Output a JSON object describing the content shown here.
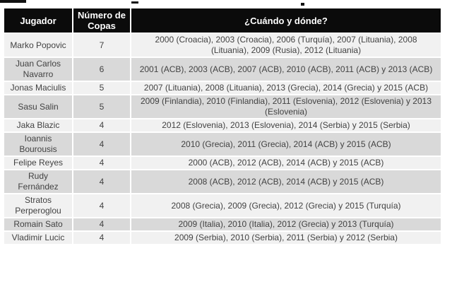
{
  "colors": {
    "header_bg": "#0b0b0b",
    "header_text": "#ffffff",
    "row_light": "#f1f1f1",
    "row_dark": "#d9d9d9",
    "body_text": "#424242",
    "page_bg": "#ffffff"
  },
  "chart_data": {
    "type": "table",
    "title": "",
    "columns": [
      "Jugador",
      "Número de Copas",
      "¿Cuándo y dónde?"
    ],
    "rows": [
      [
        "Marko Popovic",
        7,
        "2000 (Croacia), 2003 (Croacia), 2006 (Turquía), 2007 (Lituania), 2008 (Lituania), 2009 (Rusia), 2012 (Lituania)"
      ],
      [
        "Juan Carlos Navarro",
        6,
        "2001 (ACB), 2003 (ACB), 2007 (ACB), 2010 (ACB), 2011 (ACB) y 2013 (ACB)"
      ],
      [
        "Jonas Maciulis",
        5,
        "2007 (Lituania), 2008 (Lituania), 2013 (Grecia), 2014 (Grecia) y 2015 (ACB)"
      ],
      [
        "Sasu Salin",
        5,
        "2009 (Finlandia), 2010 (Finlandia), 2011 (Eslovenia), 2012 (Eslovenia) y 2013 (Eslovenia)"
      ],
      [
        "Jaka Blazic",
        4,
        "2012 (Eslovenia), 2013 (Eslovenia), 2014 (Serbia) y 2015 (Serbia)"
      ],
      [
        "Ioannis Bourousis",
        4,
        "2010 (Grecia), 2011 (Grecia), 2014 (ACB) y 2015 (ACB)"
      ],
      [
        "Felipe Reyes",
        4,
        "2000 (ACB), 2012 (ACB), 2014 (ACB) y 2015 (ACB)"
      ],
      [
        "Rudy Fernández",
        4,
        "2008 (ACB), 2012 (ACB), 2014 (ACB) y 2015 (ACB)"
      ],
      [
        "Stratos Perperoglou",
        4,
        "2008 (Grecia), 2009 (Grecia), 2012 (Grecia) y 2015 (Turquía)"
      ],
      [
        "Romain Sato",
        4,
        "2009 (Italia), 2010 (Italia), 2012 (Grecia) y 2013 (Turquía)"
      ],
      [
        "Vladimir Lucic",
        4,
        "2009 (Serbia), 2010 (Serbia), 2011 (Serbia) y 2012 (Serbia)"
      ]
    ]
  }
}
